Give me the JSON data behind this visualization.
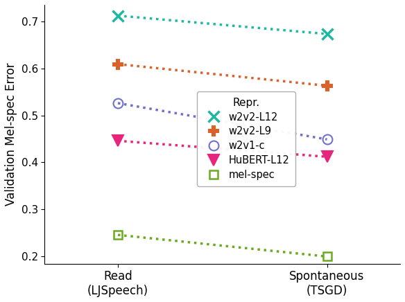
{
  "title": "",
  "ylabel": "Validation Mel-spec Error",
  "x_labels": [
    "Read\n(LJSpeech)",
    "Spontaneous\n(TSGD)"
  ],
  "x_positions": [
    0,
    1
  ],
  "ylim": [
    0.185,
    0.735
  ],
  "series": [
    {
      "label": "w2v2-L12",
      "values": [
        0.712,
        0.673
      ],
      "color": "#1db8a0",
      "marker": "x",
      "markersize": 11,
      "markeredgewidth": 2.5
    },
    {
      "label": "w2v2-L9",
      "values": [
        0.609,
        0.563
      ],
      "color": "#d8622a",
      "marker": "P",
      "markersize": 10,
      "markeredgewidth": 1.5
    },
    {
      "label": "w2v1-c",
      "values": [
        0.526,
        0.449
      ],
      "color": "#7070c8",
      "marker": "o",
      "markersize": 10,
      "markeredgewidth": 1.5
    },
    {
      "label": "HuBERT-L12",
      "values": [
        0.446,
        0.412
      ],
      "color": "#e8257d",
      "marker": "v",
      "markersize": 11,
      "markeredgewidth": 1.5
    },
    {
      "label": "mel-spec",
      "values": [
        0.246,
        0.2
      ],
      "color": "#6aaa1e",
      "marker": "s",
      "markersize": 9,
      "markeredgewidth": 1.8
    }
  ],
  "legend_title": "Repr.",
  "yticks": [
    0.2,
    0.3,
    0.4,
    0.5,
    0.6,
    0.7
  ],
  "background_color": "#ffffff",
  "figsize": [
    5.84,
    4.36
  ],
  "dpi": 100
}
